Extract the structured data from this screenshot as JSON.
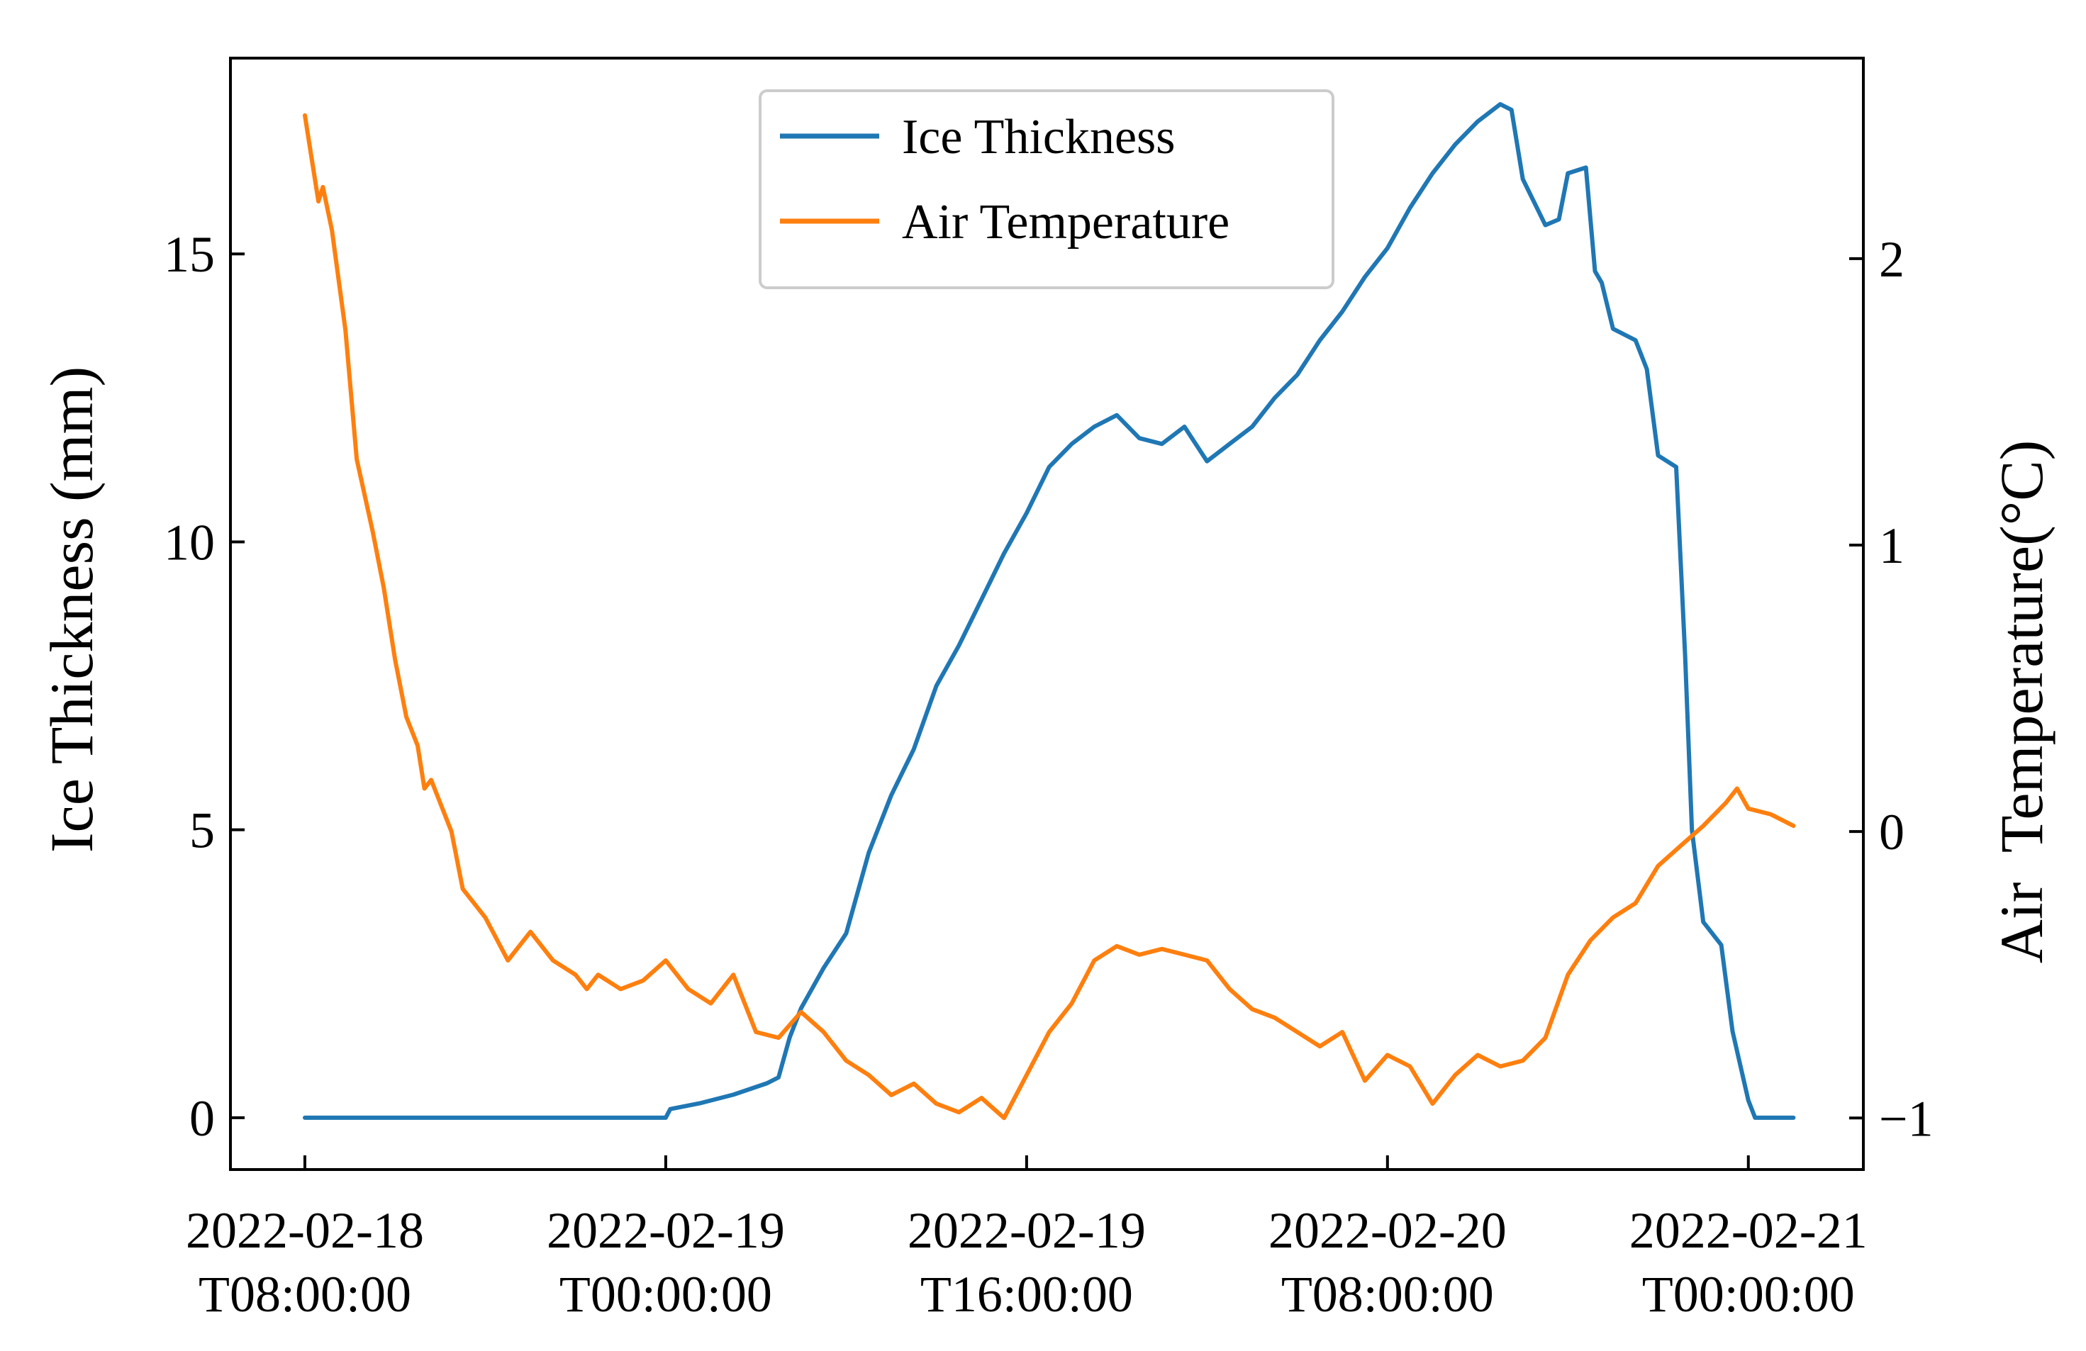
{
  "chart_data": {
    "type": "line",
    "title": "",
    "x": {
      "unit": "hours since 2022-02-18T08:00:00",
      "ticks": [
        0,
        16,
        32,
        48,
        64
      ],
      "tick_labels": [
        [
          "2022-02-18",
          "T08:00:00"
        ],
        [
          "2022-02-19",
          "T00:00:00"
        ],
        [
          "2022-02-19",
          "T16:00:00"
        ],
        [
          "2022-02-20",
          "T08:00:00"
        ],
        [
          "2022-02-21",
          "T00:00:00"
        ]
      ],
      "xlim": [
        -3.3,
        69.1
      ],
      "xlabel": ""
    },
    "y_left": {
      "label": "Ice Thickness (mm)",
      "ylim": [
        -0.9,
        18.4
      ],
      "ticks": [
        0,
        5,
        10,
        15
      ],
      "tick_labels": [
        "0",
        "5",
        "10",
        "15"
      ]
    },
    "y_right": {
      "label": "Air  Temperature(°C)",
      "ylim": [
        -1.18,
        2.7
      ],
      "ticks": [
        -1,
        0,
        1,
        2
      ],
      "tick_labels": [
        "−1",
        "0",
        "1",
        "2"
      ]
    },
    "legend": {
      "placement": "top-center",
      "entries": [
        "Ice Thickness",
        "Air Temperature"
      ]
    },
    "series": [
      {
        "name": "Ice Thickness",
        "axis": "left",
        "color": "#1f77b4",
        "points": [
          [
            0,
            0
          ],
          [
            16,
            0
          ],
          [
            16.2,
            0.15
          ],
          [
            17.5,
            0.25
          ],
          [
            19,
            0.4
          ],
          [
            20.5,
            0.6
          ],
          [
            21,
            0.7
          ],
          [
            21.5,
            1.4
          ],
          [
            22,
            1.9
          ],
          [
            23,
            2.6
          ],
          [
            24,
            3.2
          ],
          [
            25,
            4.6
          ],
          [
            26,
            5.6
          ],
          [
            27,
            6.4
          ],
          [
            28,
            7.5
          ],
          [
            29,
            8.2
          ],
          [
            30,
            9.0
          ],
          [
            31,
            9.8
          ],
          [
            32,
            10.5
          ],
          [
            33,
            11.3
          ],
          [
            34,
            11.7
          ],
          [
            35,
            12.0
          ],
          [
            36,
            12.2
          ],
          [
            37,
            11.8
          ],
          [
            38,
            11.7
          ],
          [
            39,
            12.0
          ],
          [
            40,
            11.4
          ],
          [
            41,
            11.7
          ],
          [
            42,
            12.0
          ],
          [
            43,
            12.5
          ],
          [
            44,
            12.9
          ],
          [
            45,
            13.5
          ],
          [
            46,
            14.0
          ],
          [
            47,
            14.6
          ],
          [
            48,
            15.1
          ],
          [
            49,
            15.8
          ],
          [
            50,
            16.4
          ],
          [
            51,
            16.9
          ],
          [
            52,
            17.3
          ],
          [
            53,
            17.6
          ],
          [
            53.5,
            17.5
          ],
          [
            54,
            16.3
          ],
          [
            55,
            15.5
          ],
          [
            55.6,
            15.6
          ],
          [
            56,
            16.4
          ],
          [
            56.8,
            16.5
          ],
          [
            57.2,
            14.7
          ],
          [
            57.5,
            14.5
          ],
          [
            58,
            13.7
          ],
          [
            59,
            13.5
          ],
          [
            59.5,
            13.0
          ],
          [
            60,
            11.5
          ],
          [
            60.8,
            11.3
          ],
          [
            61.2,
            8.0
          ],
          [
            61.5,
            5.0
          ],
          [
            62,
            3.4
          ],
          [
            62.8,
            3.0
          ],
          [
            63.3,
            1.5
          ],
          [
            64,
            0.3
          ],
          [
            64.3,
            0
          ],
          [
            66,
            0
          ]
        ]
      },
      {
        "name": "Air Temperature",
        "axis": "right",
        "color": "#ff7f0e",
        "points": [
          [
            0,
            2.5
          ],
          [
            0.3,
            2.35
          ],
          [
            0.6,
            2.2
          ],
          [
            0.8,
            2.25
          ],
          [
            1.2,
            2.1
          ],
          [
            1.8,
            1.75
          ],
          [
            2.3,
            1.3
          ],
          [
            3,
            1.05
          ],
          [
            3.5,
            0.85
          ],
          [
            4,
            0.6
          ],
          [
            4.5,
            0.4
          ],
          [
            5,
            0.3
          ],
          [
            5.3,
            0.15
          ],
          [
            5.6,
            0.18
          ],
          [
            6,
            0.1
          ],
          [
            6.5,
            0.0
          ],
          [
            7,
            -0.2
          ],
          [
            7.5,
            -0.25
          ],
          [
            8,
            -0.3
          ],
          [
            9,
            -0.45
          ],
          [
            10,
            -0.35
          ],
          [
            11,
            -0.45
          ],
          [
            12,
            -0.5
          ],
          [
            12.5,
            -0.55
          ],
          [
            13,
            -0.5
          ],
          [
            14,
            -0.55
          ],
          [
            15,
            -0.52
          ],
          [
            16,
            -0.45
          ],
          [
            17,
            -0.55
          ],
          [
            18,
            -0.6
          ],
          [
            19,
            -0.5
          ],
          [
            20,
            -0.7
          ],
          [
            21,
            -0.72
          ],
          [
            22,
            -0.63
          ],
          [
            23,
            -0.7
          ],
          [
            24,
            -0.8
          ],
          [
            25,
            -0.85
          ],
          [
            26,
            -0.92
          ],
          [
            27,
            -0.88
          ],
          [
            28,
            -0.95
          ],
          [
            29,
            -0.98
          ],
          [
            30,
            -0.93
          ],
          [
            31,
            -1.0
          ],
          [
            32,
            -0.85
          ],
          [
            33,
            -0.7
          ],
          [
            34,
            -0.6
          ],
          [
            35,
            -0.45
          ],
          [
            36,
            -0.4
          ],
          [
            37,
            -0.43
          ],
          [
            38,
            -0.41
          ],
          [
            39,
            -0.43
          ],
          [
            40,
            -0.45
          ],
          [
            41,
            -0.55
          ],
          [
            42,
            -0.62
          ],
          [
            43,
            -0.65
          ],
          [
            44,
            -0.7
          ],
          [
            45,
            -0.75
          ],
          [
            46,
            -0.7
          ],
          [
            47,
            -0.87
          ],
          [
            48,
            -0.78
          ],
          [
            49,
            -0.82
          ],
          [
            50,
            -0.95
          ],
          [
            51,
            -0.85
          ],
          [
            52,
            -0.78
          ],
          [
            53,
            -0.82
          ],
          [
            54,
            -0.8
          ],
          [
            55,
            -0.72
          ],
          [
            56,
            -0.5
          ],
          [
            57,
            -0.38
          ],
          [
            58,
            -0.3
          ],
          [
            59,
            -0.25
          ],
          [
            60,
            -0.12
          ],
          [
            61,
            -0.05
          ],
          [
            62,
            0.02
          ],
          [
            63,
            0.1
          ],
          [
            63.5,
            0.15
          ],
          [
            64,
            0.08
          ],
          [
            65,
            0.06
          ],
          [
            66,
            0.02
          ]
        ]
      }
    ]
  }
}
